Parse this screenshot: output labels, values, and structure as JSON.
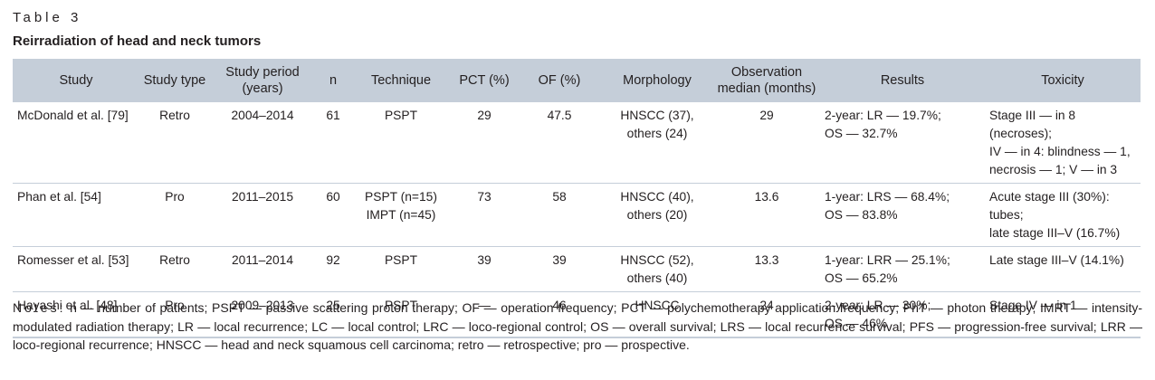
{
  "table_label": "Table 3",
  "title": "Reirradiation of head and neck tumors",
  "headers": [
    "Study",
    "Study type",
    "Study period (years)",
    "n",
    "Technique",
    "PCT (%)",
    "OF (%)",
    "Morphology",
    "Observation median (months)",
    "Results",
    "Toxicity"
  ],
  "rows": [
    {
      "study": "McDonald et al. [79]",
      "type": "Retro",
      "period": "2004–2014",
      "n": "61",
      "technique": [
        "PSPT"
      ],
      "pct": "29",
      "of": "47.5",
      "morphology": [
        "HNSCC (37),",
        "others (24)"
      ],
      "observation": "29",
      "results": [
        "2-year: LR — 19.7%;",
        "OS — 32.7%"
      ],
      "toxicity": [
        "Stage III — in 8 (necroses);",
        "IV — in 4: blindness — 1,",
        "necrosis — 1; V — in 3"
      ]
    },
    {
      "study": "Phan et al. [54]",
      "type": "Pro",
      "period": "2011–2015",
      "n": "60",
      "technique": [
        "PSPT (n=15)",
        "IMPT (n=45)"
      ],
      "pct": "73",
      "of": "58",
      "morphology": [
        "HNSCC (40),",
        "others (20)"
      ],
      "observation": "13.6",
      "results": [
        "1-year: LRS — 68.4%;",
        "OS — 83.8%"
      ],
      "toxicity": [
        "Acute stage III (30%): tubes;",
        "late stage III–V (16.7%)"
      ]
    },
    {
      "study": "Romesser et al. [53]",
      "type": "Retro",
      "period": "2011–2014",
      "n": "92",
      "technique": [
        "PSPT"
      ],
      "pct": "39",
      "of": "39",
      "morphology": [
        "HNSCC (52),",
        "others (40)"
      ],
      "observation": "13.3",
      "results": [
        "1-year: LRR — 25.1%;",
        "OS — 65.2%"
      ],
      "toxicity": [
        "Late stage III–V (14.1%)"
      ]
    },
    {
      "study": "Hayashi et al. [48]",
      "type": "Pro",
      "period": "2009–2013",
      "n": "25",
      "technique": [
        "PSPT"
      ],
      "pct": "—",
      "of": "46",
      "morphology": [
        "HNSCC"
      ],
      "observation": "24",
      "results": [
        "2-year: LR — 30%;",
        "OS — 46%"
      ],
      "toxicity": [
        "Stage IV — in 1"
      ]
    }
  ],
  "notes_label": "Notes:",
  "notes_text": "n — number of patients; PSPT — passive scattering proton therapy; OF — operation frequency; PCT — polychemotherapy application frequency; PhT — photon therapy; IMRT — intensity-modulated radiation therapy; LR — local recurrence; LC — local control; LRC — loco-regional control; OS — overall survival; LRS — local recurrence survival; PFS — progression-free survival; LRR — loco-regional recurrence; HNSCC — head and neck squamous cell carcinoma; retro — retrospective; pro — prospective.",
  "colors": {
    "header_bg": "#c5ced9",
    "text": "#231f20"
  }
}
